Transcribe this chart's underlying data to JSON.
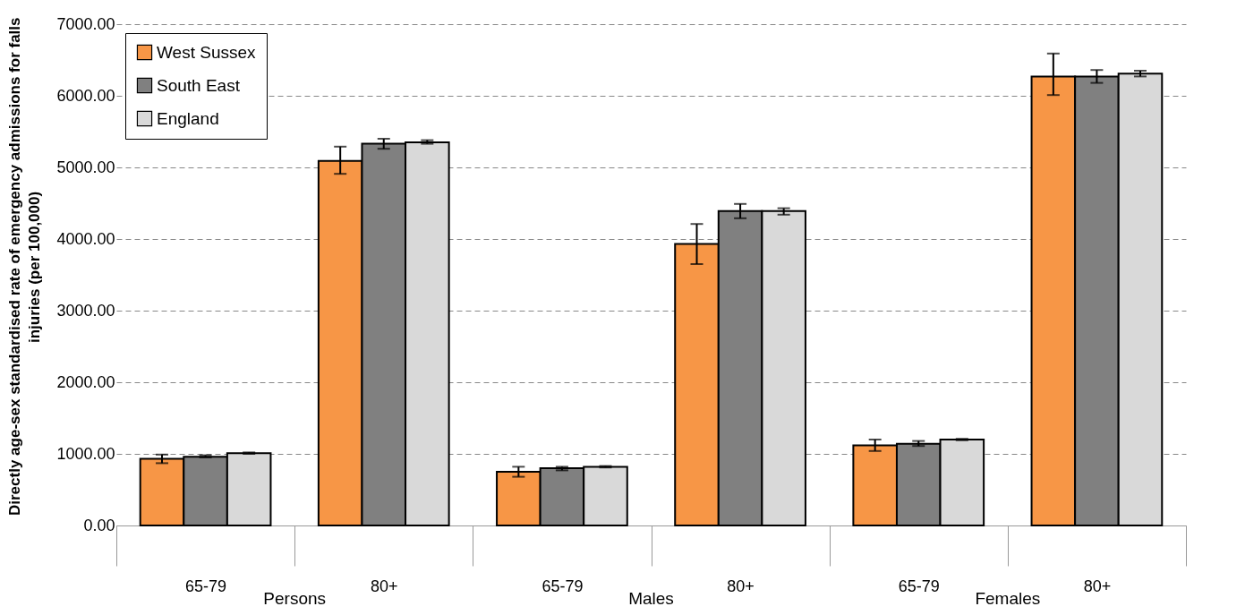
{
  "chart_data": {
    "type": "bar",
    "ylabel": "Directly age-sex standardised rate of emergency admissions for falls injuries (per 100,000)",
    "categories": [
      "65-79",
      "80+",
      "65-79",
      "80+",
      "65-79",
      "80+"
    ],
    "annotations": [
      "Persons",
      "Males",
      "Females"
    ],
    "series": [
      {
        "name": "West Sussex",
        "color": "#f79646",
        "values": [
          930,
          5090,
          750,
          3930,
          1120,
          6270
        ],
        "errors": [
          [
            870,
            990
          ],
          [
            4910,
            5290
          ],
          [
            680,
            820
          ],
          [
            3650,
            4210
          ],
          [
            1040,
            1200
          ],
          [
            6010,
            6590
          ]
        ]
      },
      {
        "name": "South East",
        "color": "#808080",
        "values": [
          960,
          5330,
          800,
          4390,
          1140,
          6270
        ],
        "errors": [
          [
            950,
            980
          ],
          [
            5260,
            5400
          ],
          [
            770,
            820
          ],
          [
            4290,
            4490
          ],
          [
            1110,
            1180
          ],
          [
            6180,
            6360
          ]
        ]
      },
      {
        "name": "England",
        "color": "#d9d9d9",
        "values": [
          1010,
          5350,
          820,
          4390,
          1200,
          6310
        ],
        "errors": [
          [
            1000,
            1020
          ],
          [
            5330,
            5380
          ],
          [
            810,
            830
          ],
          [
            4340,
            4430
          ],
          [
            1190,
            1210
          ],
          [
            6270,
            6350
          ]
        ]
      }
    ],
    "ylim": [
      0,
      7000
    ],
    "yticks": [
      {
        "value": 0,
        "label": "0.00"
      },
      {
        "value": 1000,
        "label": "1000.00"
      },
      {
        "value": 2000,
        "label": "2000.00"
      },
      {
        "value": 3000,
        "label": "3000.00"
      },
      {
        "value": 4000,
        "label": "4000.00"
      },
      {
        "value": 5000,
        "label": "5000.00"
      },
      {
        "value": 6000,
        "label": "6000.00"
      },
      {
        "value": 7000,
        "label": "7000.00"
      }
    ],
    "grid": "y",
    "legend": "top left"
  }
}
